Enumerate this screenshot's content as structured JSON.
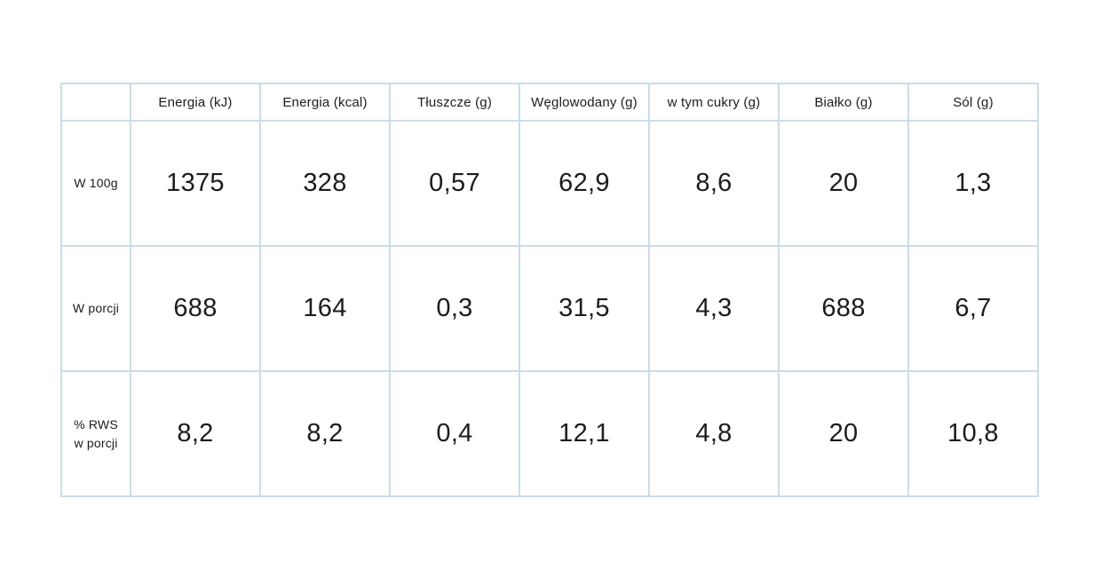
{
  "table": {
    "corner": "",
    "columns": [
      "Energia (kJ)",
      "Energia (kcal)",
      "Tłuszcze (g)",
      "Węglowodany (g)",
      "w tym cukry (g)",
      "Białko (g)",
      "Sól (g)"
    ],
    "rows": [
      {
        "label": "W 100g",
        "values": [
          "1375",
          "328",
          "0,57",
          "62,9",
          "8,6",
          "20",
          "1,3"
        ]
      },
      {
        "label": "W porcji",
        "values": [
          "688",
          "164",
          "0,3",
          "31,5",
          "4,3",
          "688",
          "6,7"
        ]
      },
      {
        "label": "% RWS\nw porcji",
        "values": [
          "8,2",
          "8,2",
          "0,4",
          "12,1",
          "4,8",
          "20",
          "10,8"
        ]
      }
    ],
    "border_color": "#ccdde6",
    "text_color": "#1c1c1c",
    "background_color": "#ffffff"
  },
  "chart_data": {
    "type": "table",
    "title": "",
    "categories": [
      "Energia (kJ)",
      "Energia (kcal)",
      "Tłuszcze (g)",
      "Węglowodany (g)",
      "w tym cukry (g)",
      "Białko (g)",
      "Sól (g)"
    ],
    "series": [
      {
        "name": "W 100g",
        "values": [
          1375,
          328,
          0.57,
          62.9,
          8.6,
          20,
          1.3
        ]
      },
      {
        "name": "W porcji",
        "values": [
          688,
          164,
          0.3,
          31.5,
          4.3,
          688,
          6.7
        ]
      },
      {
        "name": "% RWS w porcji",
        "values": [
          8.2,
          8.2,
          0.4,
          12.1,
          4.8,
          20,
          10.8
        ]
      }
    ]
  }
}
